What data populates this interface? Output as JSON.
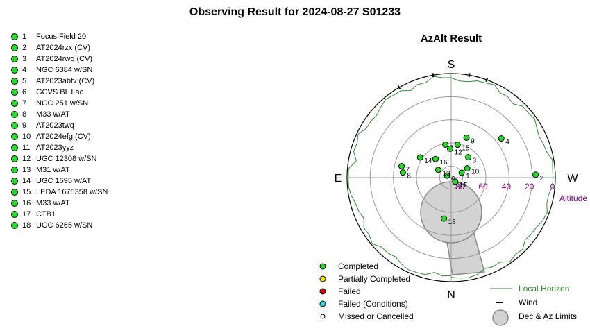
{
  "page_title": "Observing Result for 2024-08-27  S01233",
  "targets": [
    {
      "num": "1",
      "name": "Focus Field 20",
      "status": "completed"
    },
    {
      "num": "2",
      "name": "AT2024rzx (CV)",
      "status": "completed"
    },
    {
      "num": "3",
      "name": "AT2024rwq (CV)",
      "status": "completed"
    },
    {
      "num": "4",
      "name": "NGC 6384 w/SN",
      "status": "completed"
    },
    {
      "num": "5",
      "name": "AT2023abtv (CV)",
      "status": "completed"
    },
    {
      "num": "6",
      "name": "GCVS BL Lac",
      "status": "completed"
    },
    {
      "num": "7",
      "name": "NGC 251 w/SN",
      "status": "completed"
    },
    {
      "num": "8",
      "name": "M33 w/AT",
      "status": "completed"
    },
    {
      "num": "9",
      "name": "AT2023twq",
      "status": "completed"
    },
    {
      "num": "10",
      "name": "AT2024efg (CV)",
      "status": "completed"
    },
    {
      "num": "11",
      "name": "AT2023yyz",
      "status": "completed"
    },
    {
      "num": "12",
      "name": "UGC 12308 w/SN",
      "status": "completed"
    },
    {
      "num": "13",
      "name": "M31 w/AT",
      "status": "completed"
    },
    {
      "num": "14",
      "name": "UGC 1595 w/AT",
      "status": "completed"
    },
    {
      "num": "15",
      "name": "LEDA 1675358 w/SN",
      "status": "completed"
    },
    {
      "num": "16",
      "name": "M33 w/AT",
      "status": "completed"
    },
    {
      "num": "17",
      "name": "CTB1",
      "status": "completed"
    },
    {
      "num": "18",
      "name": "UGC 6265 w/SN",
      "status": "completed"
    }
  ],
  "chart_data": {
    "type": "scatter",
    "projection": "polar-azimuth-altitude",
    "title": "AzAlt Result",
    "directions": {
      "top": "S",
      "bottom": "N",
      "left": "E",
      "right": "W"
    },
    "altitude_label": "Altitude",
    "altitude_ticks": [
      "0",
      "20",
      "40",
      "60",
      "80"
    ],
    "altitude_rings": [
      0,
      20,
      40,
      60,
      80
    ],
    "points": [
      {
        "label": "1",
        "az": 245,
        "alt": 80
      },
      {
        "label": "2",
        "az": 268,
        "alt": 17
      },
      {
        "label": "3",
        "az": 220,
        "alt": 67
      },
      {
        "label": "4",
        "az": 232,
        "alt": 35
      },
      {
        "label": "5",
        "az": 170,
        "alt": 61
      },
      {
        "label": "6",
        "az": 116,
        "alt": 86
      },
      {
        "label": "7",
        "az": 103,
        "alt": 46
      },
      {
        "label": "8",
        "az": 96,
        "alt": 48
      },
      {
        "label": "9",
        "az": 201,
        "alt": 53
      },
      {
        "label": "10",
        "az": 240,
        "alt": 74
      },
      {
        "label": "11",
        "az": 315,
        "alt": 85
      },
      {
        "label": "12",
        "az": 178,
        "alt": 65
      },
      {
        "label": "13",
        "az": 121,
        "alt": 77
      },
      {
        "label": "14",
        "az": 123,
        "alt": 58
      },
      {
        "label": "15",
        "az": 191,
        "alt": 61
      },
      {
        "label": "16",
        "az": 140,
        "alt": 69
      },
      {
        "label": "17",
        "az": 315,
        "alt": 85
      },
      {
        "label": "18",
        "az": 10,
        "alt": 54
      }
    ],
    "local_horizon_color": "#2e8b2e",
    "point_color": "#22dd22",
    "altitude_color": "#800080",
    "limit_fill": "#d3d3d3",
    "legend_placement": "bottom",
    "legend_status": [
      {
        "label": "Completed",
        "color": "#22dd22"
      },
      {
        "label": "Partially Completed",
        "color": "#f2e200"
      },
      {
        "label": "Failed",
        "color": "#dd0000"
      },
      {
        "label": "Failed (Conditions)",
        "color": "#33d6e0"
      },
      {
        "label": "Missed or Cancelled",
        "color": "#ffffff"
      }
    ],
    "legend_lines": [
      {
        "label": "Local Horizon",
        "kind": "line",
        "color": "#2e8b2e"
      },
      {
        "label": "Wind",
        "kind": "tick",
        "color": "#000000"
      },
      {
        "label": "Dec & Az Limits",
        "kind": "circle",
        "color": "#d3d3d3"
      }
    ]
  }
}
